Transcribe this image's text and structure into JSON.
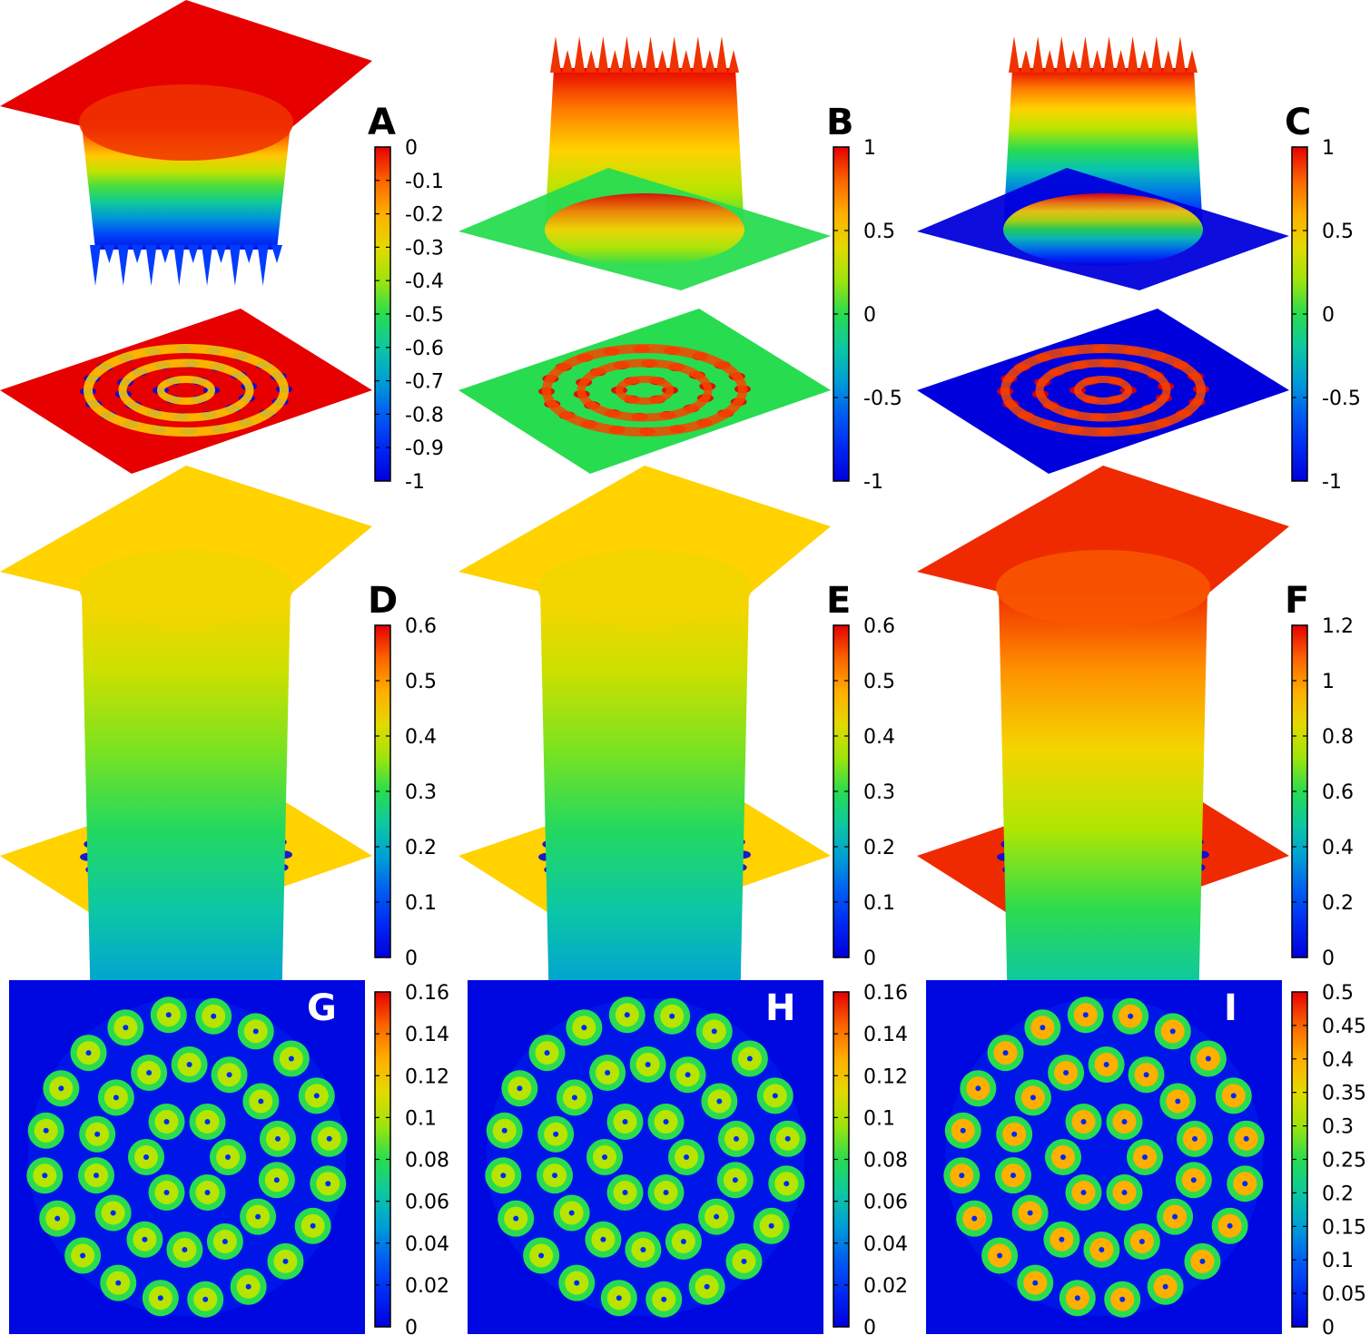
{
  "figure": {
    "panels": [
      {
        "label": "A",
        "kind": "surface-3d",
        "cmin": -1,
        "cmax": 0,
        "ticks": [
          "0",
          "-0.1",
          "-0.2",
          "-0.3",
          "-0.4",
          "-0.5",
          "-0.6",
          "-0.7",
          "-0.8",
          "-0.9",
          "-1"
        ],
        "label_color": "#000000"
      },
      {
        "label": "B",
        "kind": "surface-3d",
        "cmin": -1,
        "cmax": 1,
        "ticks": [
          "1",
          "0.5",
          "0",
          "-0.5",
          "-1"
        ],
        "label_color": "#000000"
      },
      {
        "label": "C",
        "kind": "surface-3d",
        "cmin": -1,
        "cmax": 1,
        "ticks": [
          "1",
          "0.5",
          "0",
          "-0.5",
          "-1"
        ],
        "label_color": "#000000"
      },
      {
        "label": "D",
        "kind": "surface-3d",
        "cmin": 0,
        "cmax": 0.6,
        "ticks": [
          "0.6",
          "0.5",
          "0.4",
          "0.3",
          "0.2",
          "0.1",
          "0"
        ],
        "label_color": "#000000"
      },
      {
        "label": "E",
        "kind": "surface-3d",
        "cmin": 0,
        "cmax": 0.6,
        "ticks": [
          "0.6",
          "0.5",
          "0.4",
          "0.3",
          "0.2",
          "0.1",
          "0"
        ],
        "label_color": "#000000"
      },
      {
        "label": "F",
        "kind": "surface-3d",
        "cmin": 0,
        "cmax": 1.2,
        "ticks": [
          "1.2",
          "1",
          "0.8",
          "0.6",
          "0.4",
          "0.2",
          "0"
        ],
        "label_color": "#000000"
      },
      {
        "label": "G",
        "kind": "heatmap",
        "cmin": 0,
        "cmax": 0.16,
        "ticks": [
          "0.16",
          "0.14",
          "0.12",
          "0.1",
          "0.08",
          "0.06",
          "0.04",
          "0.02",
          "0"
        ],
        "label_color": "#ffffff"
      },
      {
        "label": "H",
        "kind": "heatmap",
        "cmin": 0,
        "cmax": 0.16,
        "ticks": [
          "0.16",
          "0.14",
          "0.12",
          "0.1",
          "0.08",
          "0.06",
          "0.04",
          "0.02",
          "0"
        ],
        "label_color": "#ffffff"
      },
      {
        "label": "I",
        "kind": "heatmap",
        "cmin": 0,
        "cmax": 0.5,
        "ticks": [
          "0.5",
          "0.45",
          "0.4",
          "0.35",
          "0.3",
          "0.25",
          "0.2",
          "0.15",
          "0.1",
          "0.05",
          "0"
        ],
        "label_color": "#ffffff"
      }
    ]
  },
  "chart_data": [
    {
      "type": "surface",
      "panel": "A",
      "colorbar": {
        "min": -1,
        "max": 0,
        "ticks": [
          0,
          -0.1,
          -0.2,
          -0.3,
          -0.4,
          -0.5,
          -0.6,
          -0.7,
          -0.8,
          -0.9,
          -1
        ]
      },
      "background_level": 0,
      "projection_rings": [
        6,
        14,
        20
      ]
    },
    {
      "type": "surface",
      "panel": "B",
      "colorbar": {
        "min": -1,
        "max": 1,
        "ticks": [
          1,
          0.5,
          0,
          -0.5,
          -1
        ]
      },
      "background_level": 0,
      "projection_rings": [
        6,
        14,
        20
      ]
    },
    {
      "type": "surface",
      "panel": "C",
      "colorbar": {
        "min": -1,
        "max": 1,
        "ticks": [
          1,
          0.5,
          0,
          -0.5,
          -1
        ]
      },
      "background_level": -1,
      "projection_rings": [
        6,
        14,
        20
      ]
    },
    {
      "type": "surface",
      "panel": "D",
      "colorbar": {
        "min": 0,
        "max": 0.6,
        "ticks": [
          0.6,
          0.5,
          0.4,
          0.3,
          0.2,
          0.1,
          0
        ]
      },
      "background_level": 0.45,
      "projection_rings": [
        6,
        14,
        20
      ]
    },
    {
      "type": "surface",
      "panel": "E",
      "colorbar": {
        "min": 0,
        "max": 0.6,
        "ticks": [
          0.6,
          0.5,
          0.4,
          0.3,
          0.2,
          0.1,
          0
        ]
      },
      "background_level": 0.45,
      "projection_rings": [
        6,
        14,
        20
      ]
    },
    {
      "type": "surface",
      "panel": "F",
      "colorbar": {
        "min": 0,
        "max": 1.2,
        "ticks": [
          1.2,
          1,
          0.8,
          0.6,
          0.4,
          0.2,
          0
        ]
      },
      "background_level": 1.15,
      "projection_rings": [
        6,
        14,
        20
      ]
    },
    {
      "type": "heatmap",
      "panel": "G",
      "colorbar": {
        "min": 0,
        "max": 0.16,
        "ticks": [
          0.16,
          0.14,
          0.12,
          0.1,
          0.08,
          0.06,
          0.04,
          0.02,
          0
        ]
      },
      "rings": [
        {
          "count": 6,
          "value": 0.1
        },
        {
          "count": 14,
          "value": 0.1
        },
        {
          "count": 20,
          "value": 0.1
        }
      ]
    },
    {
      "type": "heatmap",
      "panel": "H",
      "colorbar": {
        "min": 0,
        "max": 0.16,
        "ticks": [
          0.16,
          0.14,
          0.12,
          0.1,
          0.08,
          0.06,
          0.04,
          0.02,
          0
        ]
      },
      "rings": [
        {
          "count": 6,
          "value": 0.1
        },
        {
          "count": 14,
          "value": 0.1
        },
        {
          "count": 20,
          "value": 0.1
        }
      ]
    },
    {
      "type": "heatmap",
      "panel": "I",
      "colorbar": {
        "min": 0,
        "max": 0.5,
        "ticks": [
          0.5,
          0.45,
          0.4,
          0.35,
          0.3,
          0.25,
          0.2,
          0.15,
          0.1,
          0.05,
          0
        ]
      },
      "rings": [
        {
          "count": 6,
          "value": 0.4
        },
        {
          "count": 14,
          "value": 0.4
        },
        {
          "count": 20,
          "value": 0.4
        }
      ]
    }
  ]
}
